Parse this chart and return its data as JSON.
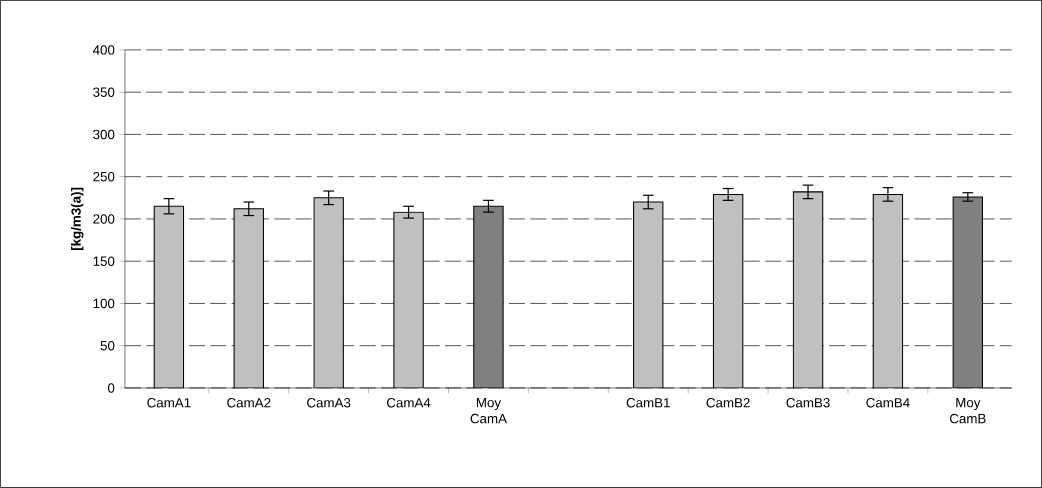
{
  "chart_data": {
    "type": "bar",
    "ylabel": "[kg/m3(a)]",
    "categories": [
      "CamA1",
      "CamA2",
      "CamA3",
      "CamA4",
      "Moy CamA",
      null,
      "CamB1",
      "CamB2",
      "CamB3",
      "CamB4",
      "Moy CamB"
    ],
    "values": [
      215,
      212,
      225,
      208,
      215,
      null,
      220,
      229,
      232,
      229,
      226
    ],
    "errors": [
      9,
      8,
      8,
      7,
      7,
      null,
      8,
      7,
      8,
      8,
      5
    ],
    "colors": [
      "#c0c0c0",
      "#c0c0c0",
      "#c0c0c0",
      "#c0c0c0",
      "#808080",
      null,
      "#c0c0c0",
      "#c0c0c0",
      "#c0c0c0",
      "#c0c0c0",
      "#808080"
    ],
    "ylim": [
      0,
      400
    ],
    "yticks": [
      0,
      50,
      100,
      150,
      200,
      250,
      300,
      350,
      400
    ],
    "grid": "y"
  }
}
